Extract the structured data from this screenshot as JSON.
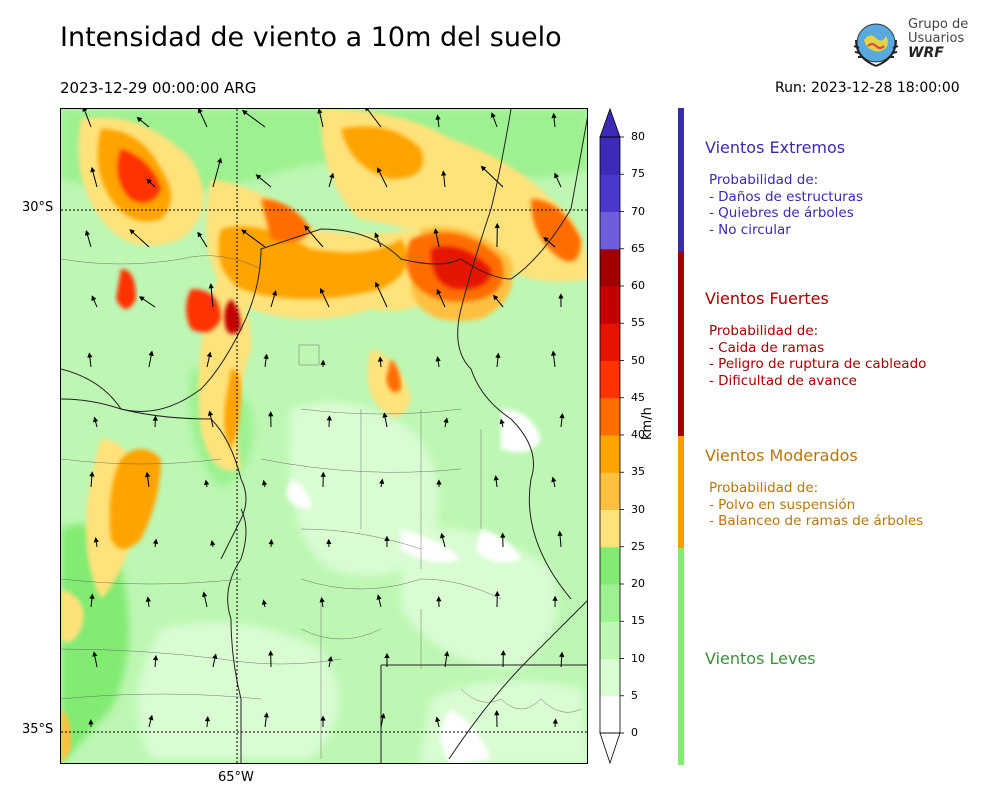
{
  "header": {
    "title": "Intensidad de viento a 10m del suelo",
    "valid_time": "2023-12-29 00:00:00 ARG",
    "run_time": "Run: 2023-12-28 18:00:00"
  },
  "logo": {
    "line1": "Grupo de",
    "line2": "Usuarios",
    "line3": "WRF"
  },
  "map": {
    "lat_labels": [
      "30°S",
      "35°S"
    ],
    "lon_labels": [
      "65°W"
    ]
  },
  "colorbar": {
    "units": "km/h",
    "ticks": [
      "0",
      "5",
      "10",
      "15",
      "20",
      "25",
      "30",
      "35",
      "40",
      "45",
      "50",
      "55",
      "60",
      "65",
      "70",
      "75",
      "80"
    ],
    "colors": [
      "#ffffff",
      "#d9fcd3",
      "#bdf7b3",
      "#9ef191",
      "#82eb72",
      "#ffe27a",
      "#ffc03f",
      "#ffa300",
      "#ff6d00",
      "#ff3200",
      "#e41400",
      "#c50000",
      "#a10000",
      "#6e5edb",
      "#4b38cc",
      "#3c2ab8"
    ],
    "extend_color": "#3c2ab8"
  },
  "legend": [
    {
      "title": "Vientos Extremos",
      "color": "#3a2aad",
      "lines": [
        "Probabilidad de:",
        "- Daños de estructuras",
        "- Quiebres de árboles",
        "- No circular"
      ]
    },
    {
      "title": "Vientos Fuertes",
      "color": "#a30000",
      "lines": [
        "Probabilidad de:",
        "- Caida de ramas",
        "- Peligro de ruptura de cableado",
        "- Dificultad de avance"
      ]
    },
    {
      "title": "Vientos Moderados",
      "color": "#b8760a",
      "lines": [
        "Probabilidad de:",
        "- Polvo en suspensión",
        "- Balanceo de ramas de árboles"
      ]
    },
    {
      "title": "Vientos Leves",
      "color": "#3f8f3f",
      "lines": []
    }
  ],
  "legend_bar_colors": [
    "#3a2aad",
    "#a30000",
    "#ff9d00",
    "#7ef06e"
  ]
}
